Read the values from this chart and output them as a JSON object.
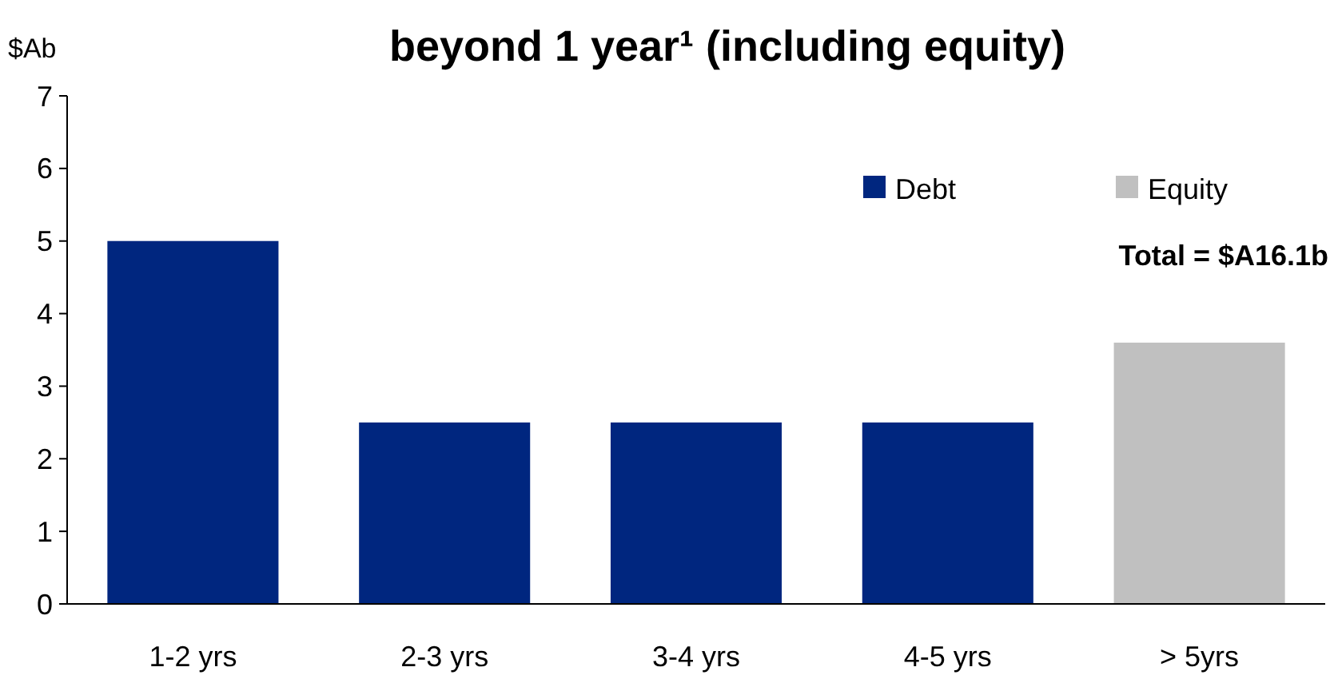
{
  "chart_data": {
    "type": "bar",
    "title": "beyond 1 year¹ (including equity)",
    "ylabel": "$Ab",
    "categories": [
      "1-2 yrs",
      "2-3 yrs",
      "3-4 yrs",
      "4-5 yrs",
      "> 5yrs"
    ],
    "series": [
      {
        "name": "Debt",
        "color": "#00267f",
        "values": [
          5,
          2.5,
          2.5,
          2.5,
          null
        ]
      },
      {
        "name": "Equity",
        "color": "#c0c0c0",
        "values": [
          null,
          null,
          null,
          null,
          3.6
        ]
      }
    ],
    "ylim": [
      0,
      7
    ],
    "yticks": [
      0,
      1,
      2,
      3,
      4,
      5,
      6,
      7
    ],
    "grid": false,
    "legend": "top right",
    "annotations": [
      "Total = $A16.1b"
    ]
  }
}
